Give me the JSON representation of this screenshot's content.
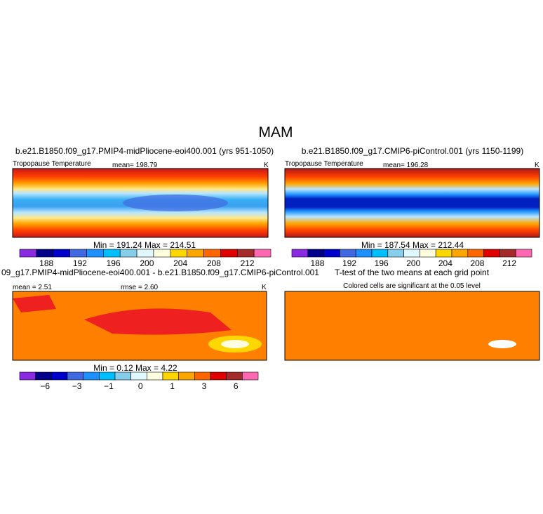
{
  "title": "MAM",
  "panels": [
    {
      "header": "b.e21.B1850.f09_g17.PMIP4-midPliocene-eoi400.001 (yrs 951-1050)",
      "label": "Tropopause Temperature",
      "mean": "mean= 198.79",
      "units": "K",
      "minmax": "Min = 191.24  Max = 214.51",
      "colorbar_labels": [
        "188",
        "192",
        "196",
        "200",
        "204",
        "208",
        "212"
      ]
    },
    {
      "header": "b.e21.B1850.f09_g17.CMIP6-piControl.001 (yrs 1150-1199)",
      "label": "Tropopause Temperature",
      "mean": "mean= 196.28",
      "units": "K",
      "minmax": "Min = 187.54  Max = 212.44",
      "colorbar_labels": [
        "188",
        "192",
        "196",
        "200",
        "204",
        "208",
        "212"
      ]
    },
    {
      "header": "09_g17.PMIP4-midPliocene-eoi400.001 - b.e21.B1850.f09_g17.CMIP6-piControl.001",
      "mean": "mean =   2.51",
      "rmse": "rmse =   2.60",
      "units": "K",
      "minmax": "Min =    0.12  Max =    4.22",
      "colorbar_labels": [
        "−6",
        "−3",
        "−1",
        "0",
        "1",
        "3",
        "6"
      ]
    },
    {
      "header": "T-test of the two means at each grid point",
      "subtitle": "Colored cells are significant at the 0.05 level"
    }
  ]
}
